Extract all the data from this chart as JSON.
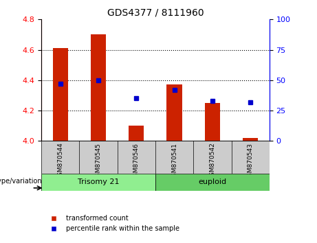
{
  "title": "GDS4377 / 8111960",
  "samples": [
    "GSM870544",
    "GSM870545",
    "GSM870546",
    "GSM870541",
    "GSM870542",
    "GSM870543"
  ],
  "red_values": [
    4.61,
    4.7,
    4.1,
    4.37,
    4.25,
    4.02
  ],
  "blue_values": [
    47,
    50,
    35,
    42,
    33,
    32
  ],
  "ylim_left": [
    4.0,
    4.8
  ],
  "ylim_right": [
    0,
    100
  ],
  "yticks_left": [
    4.0,
    4.2,
    4.4,
    4.6,
    4.8
  ],
  "yticks_right": [
    0,
    25,
    50,
    75,
    100
  ],
  "grid_values": [
    4.2,
    4.4,
    4.6
  ],
  "bar_color": "#CC2200",
  "dot_color": "#0000CC",
  "bar_width": 0.4,
  "bar_base": 4.0,
  "background_color": "#ffffff",
  "tick_area_color": "#cccccc",
  "group_box_color_trisomy": "#90EE90",
  "group_box_color_euploid": "#66CC66",
  "legend_red_label": "transformed count",
  "legend_blue_label": "percentile rank within the sample",
  "genotype_label": "genotype/variation"
}
